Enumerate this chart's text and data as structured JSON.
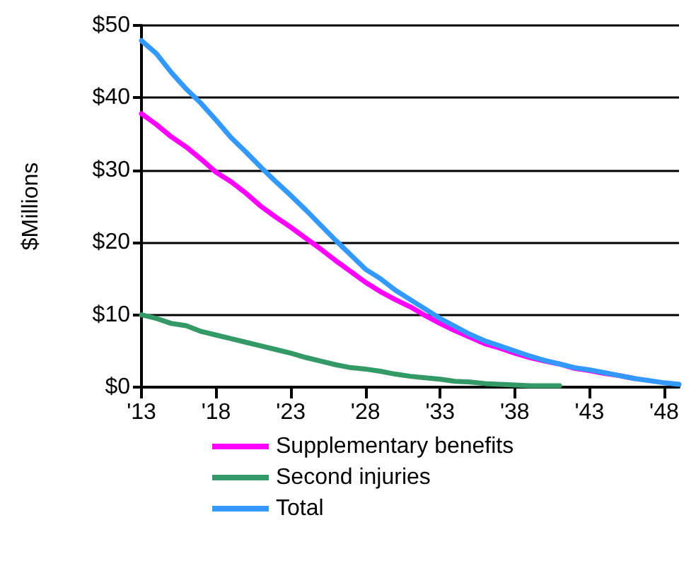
{
  "chart_data": {
    "type": "line",
    "ylabel": "$Millions",
    "x": [
      2013,
      2014,
      2015,
      2016,
      2017,
      2018,
      2019,
      2020,
      2021,
      2022,
      2023,
      2024,
      2025,
      2026,
      2027,
      2028,
      2029,
      2030,
      2031,
      2032,
      2033,
      2034,
      2035,
      2036,
      2037,
      2038,
      2039,
      2040,
      2041,
      2042,
      2043,
      2044,
      2045,
      2046,
      2047,
      2048,
      2049
    ],
    "series": [
      {
        "name": "Supplementary benefits",
        "color": "#ff00ff",
        "values": [
          37.8,
          36.3,
          34.6,
          33.2,
          31.5,
          29.7,
          28.4,
          26.8,
          25.0,
          23.5,
          22.1,
          20.6,
          19.1,
          17.5,
          16.0,
          14.5,
          13.2,
          12.1,
          11.1,
          9.9,
          8.8,
          7.8,
          6.9,
          6.0,
          5.4,
          4.7,
          4.1,
          3.6,
          3.2,
          2.6,
          2.3,
          1.9,
          1.6,
          1.2,
          null,
          null,
          null
        ]
      },
      {
        "name": "Second injuries",
        "color": "#339966",
        "values": [
          10.0,
          9.5,
          8.8,
          8.5,
          7.7,
          7.2,
          6.7,
          6.2,
          5.7,
          5.2,
          4.7,
          4.1,
          3.6,
          3.1,
          2.7,
          2.5,
          2.2,
          1.8,
          1.5,
          1.3,
          1.1,
          0.8,
          0.7,
          0.5,
          0.4,
          0.3,
          0.2,
          0.2,
          0.2,
          null,
          null,
          null,
          null,
          null,
          null,
          null,
          null
        ]
      },
      {
        "name": "Total",
        "color": "#3399ff",
        "values": [
          47.9,
          46.1,
          43.5,
          41.2,
          39.2,
          36.9,
          34.5,
          32.5,
          30.4,
          28.4,
          26.5,
          24.5,
          22.4,
          20.3,
          18.3,
          16.3,
          15.0,
          13.4,
          12.1,
          10.8,
          9.5,
          8.4,
          7.3,
          6.4,
          5.7,
          5.0,
          4.3,
          3.7,
          3.2,
          2.7,
          2.4,
          2.0,
          1.6,
          1.2,
          0.9,
          0.6,
          0.4
        ]
      }
    ],
    "xlim": [
      2013,
      2049
    ],
    "xticks": [
      {
        "value": 2013,
        "label": "'13"
      },
      {
        "value": 2018,
        "label": "'18"
      },
      {
        "value": 2023,
        "label": "'23"
      },
      {
        "value": 2028,
        "label": "'28"
      },
      {
        "value": 2033,
        "label": "'33"
      },
      {
        "value": 2038,
        "label": "'38"
      },
      {
        "value": 2043,
        "label": "'43"
      },
      {
        "value": 2048,
        "label": "'48"
      }
    ],
    "ylim": [
      0,
      50
    ],
    "yticks": [
      {
        "value": 0,
        "label": "$0"
      },
      {
        "value": 10,
        "label": "$10"
      },
      {
        "value": 20,
        "label": "$20"
      },
      {
        "value": 30,
        "label": "$30"
      },
      {
        "value": 40,
        "label": "$40"
      },
      {
        "value": 50,
        "label": "$50"
      }
    ],
    "grid": "y",
    "legend": "bottom",
    "marker": "none",
    "line_style": "solid"
  }
}
